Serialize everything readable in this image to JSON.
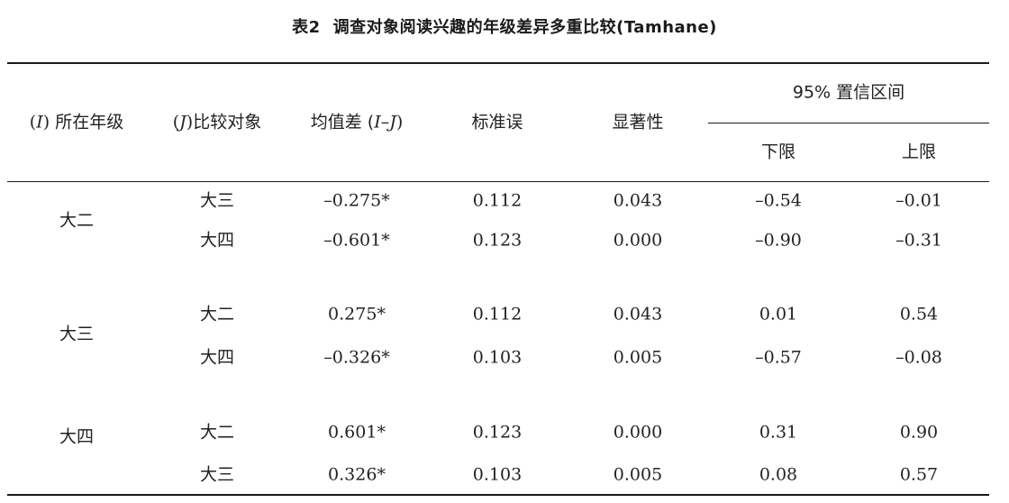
{
  "caption": {
    "number": "表2",
    "title": "调查对象阅读兴趣的年级差异多重比较(Tamhane)"
  },
  "headers": {
    "col_i": {
      "open": "(",
      "var": "I",
      "close": ")",
      "text": " 所在年级"
    },
    "col_j": {
      "open": "(",
      "var": "J",
      "close": ")",
      "text": "比较对象"
    },
    "mean_diff": {
      "text": "均值差 (",
      "var": "I–J",
      "close": ")"
    },
    "std_err": "标准误",
    "sig": "显著性",
    "ci": "95% 置信区间",
    "lower": "下限",
    "upper": "上限"
  },
  "groups": [
    {
      "grade": "大二",
      "rows": [
        {
          "compare": "大三",
          "mean_diff": "–0.275*",
          "std_err": "0.112",
          "sig": "0.043",
          "lower": "–0.54",
          "upper": "–0.01"
        },
        {
          "compare": "大四",
          "mean_diff": "–0.601*",
          "std_err": "0.123",
          "sig": "0.000",
          "lower": "–0.90",
          "upper": "–0.31"
        }
      ]
    },
    {
      "grade": "大三",
      "rows": [
        {
          "compare": "大二",
          "mean_diff": "0.275*",
          "std_err": "0.112",
          "sig": "0.043",
          "lower": "0.01",
          "upper": "0.54"
        },
        {
          "compare": "大四",
          "mean_diff": "–0.326*",
          "std_err": "0.103",
          "sig": "0.005",
          "lower": "–0.57",
          "upper": "–0.08"
        }
      ]
    },
    {
      "grade": "大四",
      "rows": [
        {
          "compare": "大二",
          "mean_diff": "0.601*",
          "std_err": "0.123",
          "sig": "0.000",
          "lower": "0.31",
          "upper": "0.90"
        },
        {
          "compare": "大三",
          "mean_diff": "0.326*",
          "std_err": "0.103",
          "sig": "0.005",
          "lower": "0.08",
          "upper": "0.57"
        }
      ]
    }
  ]
}
